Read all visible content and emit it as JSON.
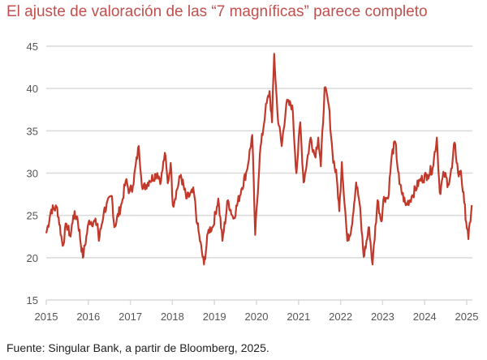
{
  "chart_data": {
    "type": "line",
    "title": "El ajuste de valoración de las “7 magníficas” parece completo",
    "xlabel": "",
    "ylabel": "",
    "xlim": [
      2015,
      2025.15
    ],
    "ylim": [
      15,
      45
    ],
    "grid": true,
    "yticks": [
      "15",
      "20",
      "25",
      "30",
      "35",
      "40",
      "45"
    ],
    "xticks": [
      "2015",
      "2016",
      "2017",
      "2018",
      "2019",
      "2020",
      "2021",
      "2022",
      "2023",
      "2024",
      "2025"
    ],
    "line_color": "#c0392b",
    "series": [
      {
        "name": "7 magníficas",
        "x": [
          2015.0,
          2015.12,
          2015.26,
          2015.39,
          2015.48,
          2015.58,
          2015.64,
          2015.74,
          2015.87,
          2016.02,
          2016.22,
          2016.25,
          2016.37,
          2016.56,
          2016.62,
          2016.8,
          2016.89,
          2016.98,
          2017.06,
          2017.2,
          2017.29,
          2017.45,
          2017.64,
          2017.73,
          2017.82,
          2017.89,
          2017.96,
          2018.01,
          2018.2,
          2018.33,
          2018.51,
          2018.59,
          2018.75,
          2018.86,
          2018.96,
          2019.09,
          2019.19,
          2019.32,
          2019.45,
          2019.64,
          2019.77,
          2019.9,
          2019.97,
          2020.08,
          2020.21,
          2020.31,
          2020.37,
          2020.42,
          2020.5,
          2020.6,
          2020.71,
          2020.85,
          2020.95,
          2021.04,
          2021.12,
          2021.29,
          2021.39,
          2021.47,
          2021.53,
          2021.62,
          2021.72,
          2021.81,
          2021.91,
          2021.97,
          2022.03,
          2022.16,
          2022.26,
          2022.37,
          2022.45,
          2022.55,
          2022.68,
          2022.76,
          2022.88,
          2022.97,
          2023.03,
          2023.13,
          2023.22,
          2023.3,
          2023.4,
          2023.55,
          2023.69,
          2023.88,
          2024.07,
          2024.19,
          2024.29,
          2024.36,
          2024.46,
          2024.56,
          2024.65,
          2024.71,
          2024.81,
          2024.86,
          2024.94,
          2025.04,
          2025.12
        ],
        "y": [
          22.9,
          25.7,
          25.9,
          21.4,
          24,
          22.5,
          25,
          24.8,
          20,
          24.4,
          24,
          22,
          25.5,
          27.3,
          23.6,
          26.5,
          29.1,
          27.8,
          28.5,
          33.2,
          28.1,
          29.1,
          30,
          29.1,
          32.4,
          28.8,
          31.2,
          26.2,
          29.8,
          27,
          27.8,
          24,
          19.2,
          23.3,
          23.6,
          27,
          22,
          26.8,
          24.6,
          28.1,
          30.3,
          34.5,
          22.7,
          32.2,
          37.3,
          39.7,
          36,
          44.1,
          37,
          33.2,
          38.2,
          38,
          30,
          36,
          28.9,
          34.2,
          32,
          34.2,
          30.8,
          40.1,
          38,
          32.2,
          29.4,
          25.5,
          31.3,
          22,
          23.6,
          28.9,
          26.5,
          20.1,
          23.6,
          19.2,
          26.8,
          24.3,
          27.2,
          27,
          32.2,
          33.7,
          28.7,
          26.2,
          27.2,
          29.1,
          29.8,
          30.6,
          34.2,
          27.7,
          30,
          28.7,
          30.6,
          33.6,
          29.6,
          30.3,
          26.5,
          22.2,
          26.2
        ]
      }
    ]
  },
  "source": "Fuente: Singular Bank, a partir de Bloomberg, 2025."
}
